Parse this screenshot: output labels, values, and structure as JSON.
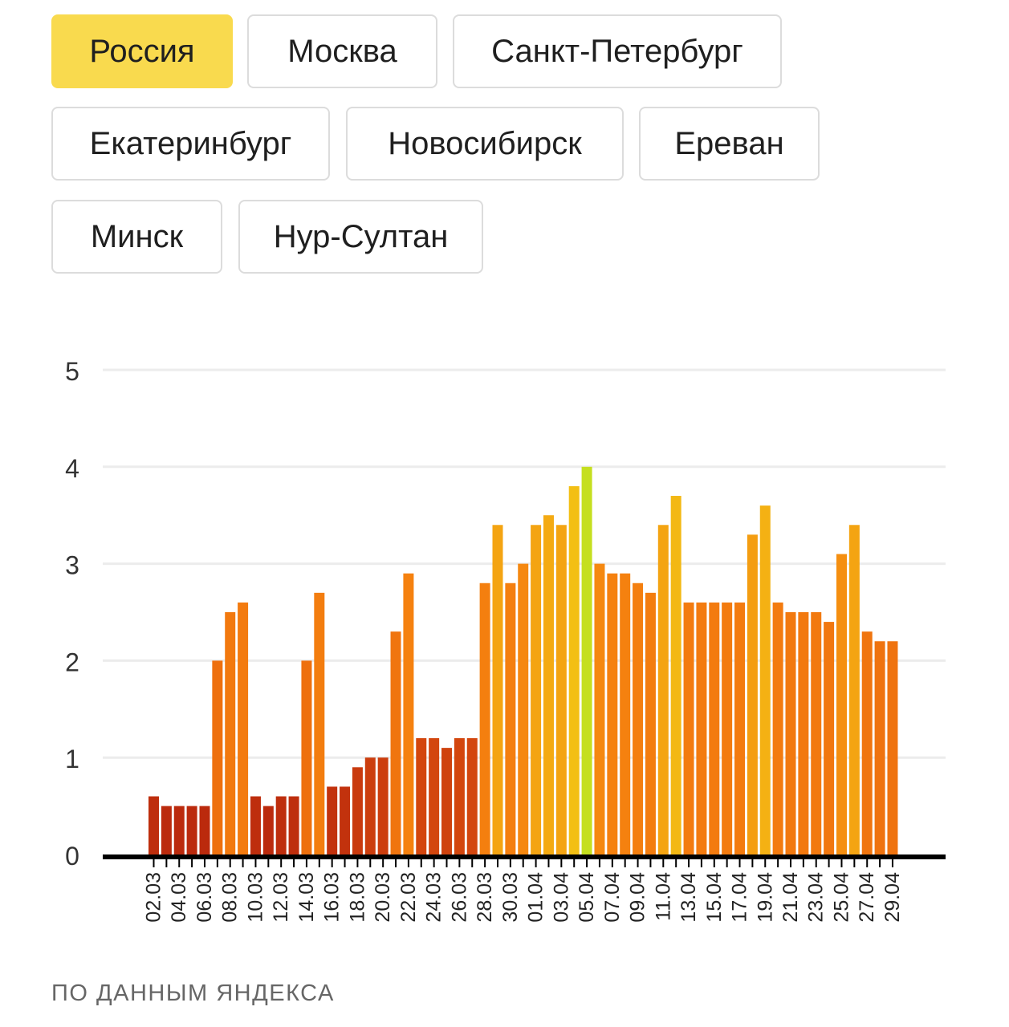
{
  "tabs": [
    {
      "label": "Россия",
      "active": true
    },
    {
      "label": "Москва",
      "active": false
    },
    {
      "label": "Санкт-Петербург",
      "active": false
    },
    {
      "label": "Екатеринбург",
      "active": false
    },
    {
      "label": "Новосибирск",
      "active": false
    },
    {
      "label": "Ереван",
      "active": false
    },
    {
      "label": "Минск",
      "active": false
    },
    {
      "label": "Нур-Султан",
      "active": false
    }
  ],
  "colors": {
    "active_tab": "#f9da4e",
    "bar_low": "#bb2a0d",
    "bar_mid": "#f5810f",
    "bar_high": "#f3c614",
    "bar_max": "#c5df1f",
    "gridline": "#ececec",
    "axis": "#000000"
  },
  "chart_data": {
    "type": "bar",
    "ylim": [
      0,
      5
    ],
    "yticks": [
      "0",
      "1",
      "2",
      "3",
      "4",
      "5"
    ],
    "grid": true,
    "xlabel": "",
    "ylabel": "",
    "categories": [
      "02.03",
      "03.03",
      "04.03",
      "05.03",
      "06.03",
      "07.03",
      "08.03",
      "09.03",
      "10.03",
      "11.03",
      "12.03",
      "13.03",
      "14.03",
      "15.03",
      "16.03",
      "17.03",
      "18.03",
      "19.03",
      "20.03",
      "21.03",
      "22.03",
      "23.03",
      "24.03",
      "25.03",
      "26.03",
      "27.03",
      "28.03",
      "29.03",
      "30.03",
      "31.03",
      "01.04",
      "02.04",
      "03.04",
      "04.04",
      "05.04",
      "06.04",
      "07.04",
      "08.04",
      "09.04",
      "10.04",
      "11.04",
      "12.04",
      "13.04",
      "14.04",
      "15.04",
      "16.04",
      "17.04",
      "18.04",
      "19.04",
      "20.04",
      "21.04",
      "22.04",
      "23.04",
      "24.04",
      "25.04",
      "26.04",
      "27.04",
      "28.04",
      "29.04"
    ],
    "tick_labels": [
      "02.03",
      "04.03",
      "06.03",
      "08.03",
      "10.03",
      "12.03",
      "14.03",
      "16.03",
      "18.03",
      "20.03",
      "22.03",
      "24.03",
      "26.03",
      "28.03",
      "30.03",
      "01.04",
      "03.04",
      "05.04",
      "07.04",
      "09.04",
      "11.04",
      "13.04",
      "15.04",
      "17.04",
      "19.04",
      "21.04",
      "23.04",
      "25.04",
      "27.04",
      "29.04"
    ],
    "values": [
      0.6,
      0.5,
      0.5,
      0.5,
      0.5,
      2.0,
      2.5,
      2.6,
      0.6,
      0.5,
      0.6,
      0.6,
      2.0,
      2.7,
      0.7,
      0.7,
      0.9,
      1.0,
      1.0,
      2.3,
      2.9,
      1.2,
      1.2,
      1.1,
      1.2,
      1.2,
      2.8,
      3.4,
      2.8,
      3.0,
      3.4,
      3.5,
      3.4,
      3.8,
      4.0,
      3.0,
      2.9,
      2.9,
      2.8,
      2.7,
      3.4,
      3.7,
      2.6,
      2.6,
      2.6,
      2.6,
      2.6,
      3.3,
      3.6,
      2.6,
      2.5,
      2.5,
      2.5,
      2.4,
      3.1,
      3.4,
      2.3,
      2.2,
      2.2
    ]
  },
  "source": "ПО ДАННЫМ ЯНДЕКСА"
}
